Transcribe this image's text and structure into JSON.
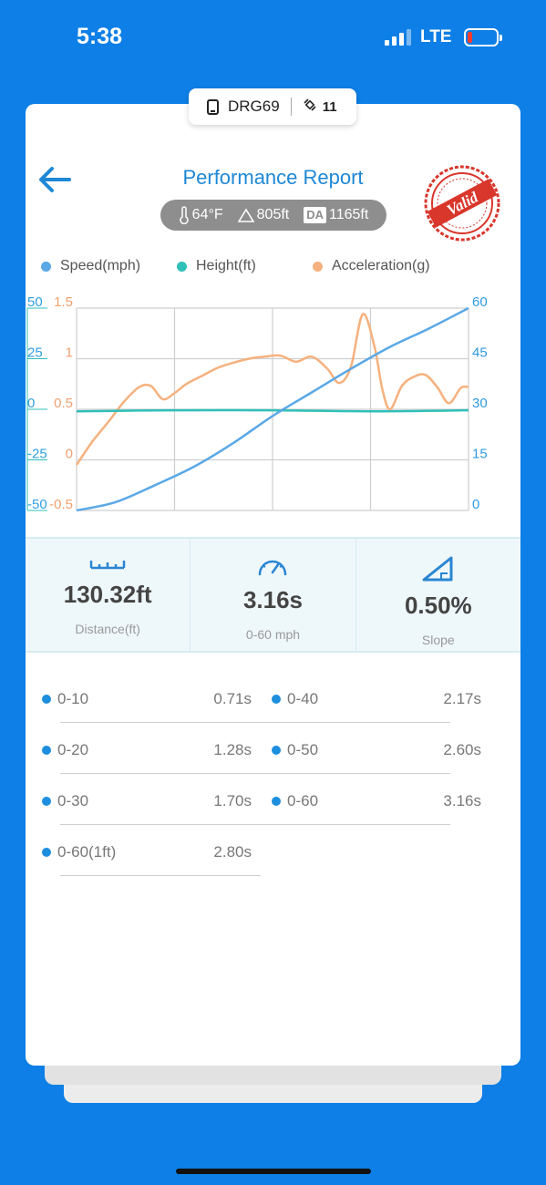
{
  "status_bar": {
    "time": "5:38",
    "network": "LTE"
  },
  "device": {
    "name": "DRG69",
    "satellites": "11"
  },
  "header": {
    "title": "Performance Report",
    "stamp_text": "Valid"
  },
  "conditions": {
    "temperature": "64°F",
    "altitude": "805ft",
    "da_label": "DA",
    "density_altitude": "1165ft"
  },
  "legend": [
    {
      "label": "Speed(mph)",
      "color": "#5aa8e6"
    },
    {
      "label": "Height(ft)",
      "color": "#2fc0b8"
    },
    {
      "label": "Acceleration(g)",
      "color": "#f5b17e"
    }
  ],
  "chart_data": {
    "type": "line",
    "left_axis_height_ticks": [
      "50",
      "25",
      "0",
      "-25",
      "-50"
    ],
    "left_axis_accel_ticks": [
      "1.5",
      "1",
      "0.5",
      "0",
      "-0.5"
    ],
    "right_axis_speed_ticks": [
      "60",
      "45",
      "30",
      "15",
      "0"
    ],
    "series": [
      {
        "name": "Speed(mph)",
        "axis": "right",
        "color": "#5aa8e6",
        "x": [
          0,
          0.1,
          0.2,
          0.3,
          0.4,
          0.5,
          0.6,
          0.7,
          0.8,
          0.9,
          1.0
        ],
        "y": [
          0,
          2.5,
          7.5,
          13,
          20,
          28,
          35,
          42,
          48.5,
          54,
          60
        ]
      },
      {
        "name": "Height(ft)",
        "axis": "left",
        "color": "#2fc0b8",
        "x": [
          0,
          0.25,
          0.5,
          0.75,
          1.0
        ],
        "y": [
          -1,
          -0.5,
          -0.5,
          -1,
          -0.5
        ]
      },
      {
        "name": "Acceleration(g)",
        "axis": "left",
        "color": "#f5b17e",
        "x": [
          0,
          0.04,
          0.08,
          0.12,
          0.16,
          0.19,
          0.22,
          0.25,
          0.28,
          0.32,
          0.36,
          0.4,
          0.44,
          0.48,
          0.52,
          0.56,
          0.6,
          0.64,
          0.67,
          0.7,
          0.73,
          0.76,
          0.78,
          0.8,
          0.83,
          0.86,
          0.89,
          0.92,
          0.95,
          0.98,
          1.0
        ],
        "y": [
          -0.05,
          0.18,
          0.37,
          0.57,
          0.72,
          0.73,
          0.6,
          0.66,
          0.75,
          0.83,
          0.91,
          0.96,
          1.0,
          1.02,
          1.03,
          0.97,
          1.02,
          0.9,
          0.76,
          0.92,
          1.44,
          1.12,
          0.7,
          0.5,
          0.73,
          0.82,
          0.84,
          0.72,
          0.56,
          0.71,
          0.72
        ]
      }
    ],
    "ylim_left_accel": [
      -0.5,
      1.5
    ],
    "ylim_left_height": [
      -50,
      50
    ],
    "ylim_right_speed": [
      0,
      60
    ],
    "grid": true
  },
  "stats": [
    {
      "value": "130.32ft",
      "label": "Distance(ft)"
    },
    {
      "value": "3.16s",
      "label": "0-60 mph"
    },
    {
      "value": "0.50%",
      "label": "Slope"
    }
  ],
  "splits": [
    {
      "label": "0-10",
      "time": "0.71s"
    },
    {
      "label": "0-20",
      "time": "1.28s"
    },
    {
      "label": "0-30",
      "time": "1.70s"
    },
    {
      "label": "0-60(1ft)",
      "time": "2.80s"
    },
    {
      "label": "0-40",
      "time": "2.17s"
    },
    {
      "label": "0-50",
      "time": "2.60s"
    },
    {
      "label": "0-60",
      "time": "3.16s"
    }
  ]
}
